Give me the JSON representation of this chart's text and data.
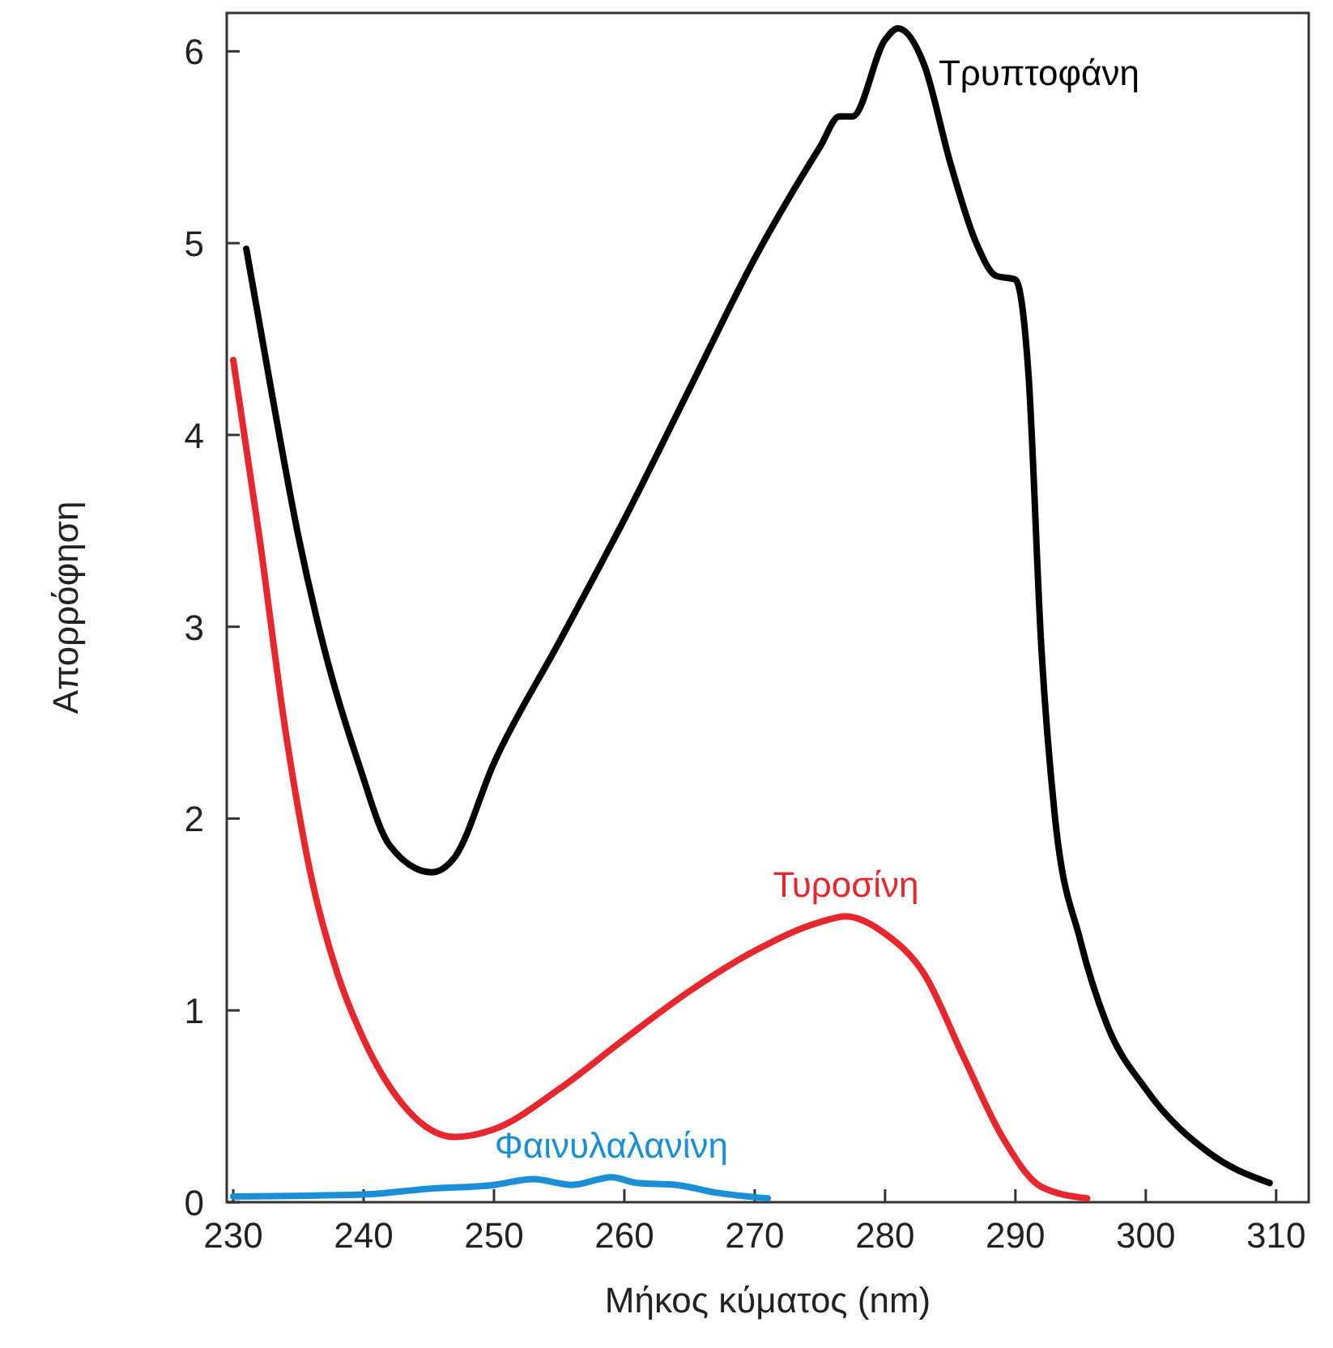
{
  "chart_data": {
    "type": "line",
    "xlabel": "Μήκος κύματος (nm)",
    "ylabel": "Απορρόφηση",
    "xlim": [
      229.5,
      312.5
    ],
    "ylim": [
      0,
      6.2
    ],
    "xticks": [
      230,
      240,
      250,
      260,
      270,
      280,
      290,
      300,
      310
    ],
    "yticks": [
      0,
      1,
      2,
      3,
      4,
      5,
      6
    ],
    "grid": false,
    "marker": "none",
    "line_style": "solid",
    "series": [
      {
        "name": "Τρυπτοφάνη",
        "color": "#000000",
        "x": [
          231,
          233,
          235,
          237,
          239.6,
          242,
          245.2,
          247,
          250,
          255,
          260,
          265,
          270,
          275,
          276.5,
          277.5,
          280,
          281,
          283,
          285,
          287,
          288.5,
          290,
          291,
          292,
          293,
          295,
          297,
          300,
          305,
          309.5
        ],
        "values": [
          4.97,
          4.2,
          3.47,
          2.88,
          2.29,
          1.86,
          1.72,
          1.8,
          2.29,
          2.92,
          3.56,
          4.24,
          4.92,
          5.5,
          5.66,
          5.66,
          6.06,
          6.12,
          5.93,
          5.42,
          5.0,
          4.83,
          4.81,
          4.32,
          2.88,
          2.03,
          1.36,
          0.93,
          0.59,
          0.25,
          0.1
        ]
      },
      {
        "name": "Τυροσίνη",
        "color": "#e8262e",
        "x": [
          230,
          232,
          234,
          236,
          238,
          240,
          243,
          247,
          250,
          255,
          260,
          265,
          270,
          275,
          277,
          280,
          283,
          286,
          289,
          292,
          295.5
        ],
        "values": [
          4.39,
          3.47,
          2.46,
          1.69,
          1.19,
          0.85,
          0.51,
          0.34,
          0.38,
          0.59,
          0.85,
          1.1,
          1.31,
          1.46,
          1.49,
          1.4,
          1.19,
          0.76,
          0.34,
          0.08,
          0.02
        ]
      },
      {
        "name": "Φαινυλαλανίνη",
        "color": "#1b8fd6",
        "x": [
          230,
          240,
          245,
          250,
          253,
          256,
          259,
          261,
          264,
          267,
          271
        ],
        "values": [
          0.03,
          0.04,
          0.07,
          0.09,
          0.12,
          0.09,
          0.13,
          0.1,
          0.09,
          0.05,
          0.02
        ]
      }
    ]
  }
}
